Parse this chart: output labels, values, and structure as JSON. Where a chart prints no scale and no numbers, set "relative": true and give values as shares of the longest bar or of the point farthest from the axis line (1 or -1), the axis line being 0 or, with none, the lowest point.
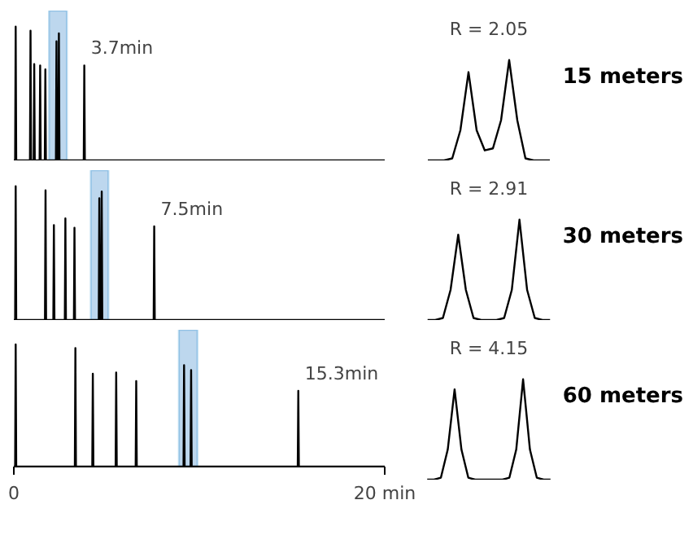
{
  "chart_data": [
    {
      "type": "line",
      "relative": true,
      "xlim": [
        0,
        20
      ],
      "tick_labels": false,
      "color": "#000000",
      "x": [
        0,
        0.07,
        0.1,
        0.13,
        0.87,
        0.9,
        0.93,
        1.07,
        1.1,
        1.13,
        1.39,
        1.42,
        1.45,
        1.67,
        1.7,
        1.73,
        2.27,
        2.3,
        2.33,
        2.4,
        2.43,
        2.46,
        3.77,
        3.8,
        3.83,
        20
      ],
      "values": [
        0,
        0,
        1.0,
        0,
        0,
        0.97,
        0,
        0,
        0.72,
        0,
        0,
        0.71,
        0,
        0,
        0.68,
        0,
        0,
        0.89,
        0,
        0,
        0.95,
        0,
        0,
        0.71,
        0,
        0
      ],
      "annotations": [
        {
          "text": "3.7min",
          "x": 3.8,
          "y": 0.71
        }
      ],
      "bands": [
        {
          "axis": "x",
          "from": 1.9,
          "to": 2.86,
          "color": "#bdd7ee"
        }
      ]
    },
    {
      "type": "line",
      "title": "R = 2.05",
      "subtitle": "15 meters",
      "relative": true,
      "tick_labels": false,
      "color": "#000000",
      "categories": [
        null,
        null,
        null,
        null,
        null,
        null,
        null,
        null,
        null,
        null,
        null,
        null,
        null,
        null,
        null,
        null
      ],
      "values": [
        0,
        0,
        0,
        0.02,
        0.3,
        0.88,
        0.3,
        0.1,
        0.12,
        0.4,
        1.0,
        0.4,
        0.02,
        0,
        0,
        0
      ]
    },
    {
      "type": "line",
      "relative": true,
      "xlim": [
        0,
        20
      ],
      "tick_labels": false,
      "color": "#000000",
      "x": [
        0,
        0.07,
        0.1,
        0.13,
        1.68,
        1.71,
        1.74,
        2.13,
        2.16,
        2.19,
        2.75,
        2.78,
        2.81,
        3.24,
        3.27,
        3.3,
        4.58,
        4.61,
        4.64,
        4.71,
        4.74,
        4.77,
        7.54,
        7.57,
        7.6,
        20
      ],
      "values": [
        0,
        0,
        1.0,
        0,
        0,
        0.97,
        0,
        0,
        0.71,
        0,
        0,
        0.76,
        0,
        0,
        0.69,
        0,
        0,
        0.91,
        0,
        0,
        0.96,
        0,
        0,
        0.7,
        0,
        0
      ],
      "annotations": [
        {
          "text": "7.5min",
          "x": 7.57,
          "y": 0.7
        }
      ],
      "bands": [
        {
          "axis": "x",
          "from": 4.15,
          "to": 5.1,
          "color": "#bdd7ee"
        }
      ]
    },
    {
      "type": "line",
      "title": "R = 2.91",
      "subtitle": "30 meters",
      "relative": true,
      "tick_labels": false,
      "color": "#000000",
      "categories": [
        null,
        null,
        null,
        null,
        null,
        null,
        null,
        null,
        null,
        null,
        null,
        null,
        null,
        null,
        null,
        null,
        null
      ],
      "values": [
        0,
        0,
        0.02,
        0.3,
        0.85,
        0.3,
        0.02,
        0,
        0,
        0,
        0.02,
        0.3,
        1.0,
        0.3,
        0.02,
        0,
        0
      ]
    },
    {
      "type": "line",
      "relative": true,
      "xlim": [
        0,
        20
      ],
      "xticks": [
        0,
        {
          "value": 20,
          "label": "20 min"
        }
      ],
      "tick_labels": "x",
      "color": "#000000",
      "x": [
        0,
        0.07,
        0.1,
        0.13,
        3.29,
        3.32,
        3.35,
        4.23,
        4.26,
        4.29,
        5.49,
        5.52,
        5.55,
        6.57,
        6.6,
        6.63,
        9.15,
        9.18,
        9.21,
        9.53,
        9.56,
        9.59,
        15.31,
        15.34,
        15.37,
        20
      ],
      "values": [
        0,
        0,
        1.0,
        0,
        0,
        0.97,
        0,
        0,
        0.76,
        0,
        0,
        0.77,
        0,
        0,
        0.7,
        0,
        0,
        0.83,
        0,
        0,
        0.79,
        0,
        0,
        0.62,
        0,
        0
      ],
      "annotations": [
        {
          "text": "15.3min",
          "x": 15.34,
          "y": 0.62
        }
      ],
      "bands": [
        {
          "axis": "x",
          "from": 8.9,
          "to": 9.9,
          "color": "#bdd7ee"
        }
      ]
    },
    {
      "type": "line",
      "title": "R = 4.15",
      "subtitle": "60 meters",
      "relative": true,
      "tick_labels": false,
      "color": "#000000",
      "categories": [
        null,
        null,
        null,
        null,
        null,
        null,
        null,
        null,
        null,
        null,
        null,
        null,
        null,
        null,
        null,
        null,
        null,
        null,
        null
      ],
      "values": [
        0,
        0,
        0.02,
        0.3,
        0.9,
        0.3,
        0.02,
        0,
        0,
        0,
        0,
        0,
        0.02,
        0.3,
        1.0,
        0.3,
        0.02,
        0,
        0
      ]
    }
  ]
}
